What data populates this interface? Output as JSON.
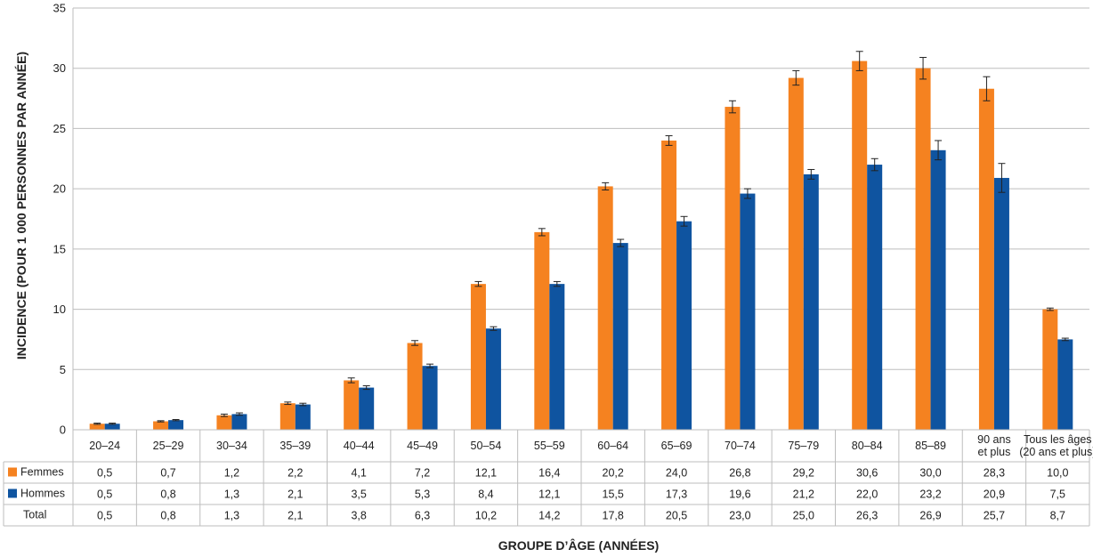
{
  "chart_data": {
    "type": "bar",
    "xlabel": "GROUPE D’ÂGE (ANNÉES)",
    "ylabel": "INCIDENCE (POUR 1 000 PERSONNES PAR ANNÉE)",
    "ylim": [
      0,
      35
    ],
    "yticks": [
      0,
      5,
      10,
      15,
      20,
      25,
      30,
      35
    ],
    "grid": true,
    "categories": [
      "20–24",
      "25–29",
      "30–34",
      "35–39",
      "40–44",
      "45–49",
      "50–54",
      "55–59",
      "60–64",
      "65–69",
      "70–74",
      "75–79",
      "80–84",
      "85–89",
      "90 ans|et plus",
      "Tous les âges|(20 ans et plus)"
    ],
    "series": [
      {
        "name": "Femmes",
        "color": "#F58220",
        "values": [
          0.5,
          0.7,
          1.2,
          2.2,
          4.1,
          7.2,
          12.1,
          16.4,
          20.2,
          24.0,
          26.8,
          29.2,
          30.6,
          30.0,
          28.3,
          10.0
        ],
        "err": [
          0.05,
          0.05,
          0.1,
          0.1,
          0.2,
          0.2,
          0.2,
          0.3,
          0.3,
          0.4,
          0.5,
          0.6,
          0.8,
          0.9,
          1.0,
          0.1
        ],
        "labels": [
          "0,5",
          "0,7",
          "1,2",
          "2,2",
          "4,1",
          "7,2",
          "12,1",
          "16,4",
          "20,2",
          "24,0",
          "26,8",
          "29,2",
          "30,6",
          "30,0",
          "28,3",
          "10,0"
        ]
      },
      {
        "name": "Hommes",
        "color": "#0F54A0",
        "values": [
          0.5,
          0.8,
          1.3,
          2.1,
          3.5,
          5.3,
          8.4,
          12.1,
          15.5,
          17.3,
          19.6,
          21.2,
          22.0,
          23.2,
          20.9,
          7.5
        ],
        "err": [
          0.05,
          0.05,
          0.1,
          0.1,
          0.15,
          0.15,
          0.15,
          0.2,
          0.3,
          0.4,
          0.4,
          0.4,
          0.5,
          0.8,
          1.2,
          0.1
        ],
        "labels": [
          "0,5",
          "0,8",
          "1,3",
          "2,1",
          "3,5",
          "5,3",
          "8,4",
          "12,1",
          "15,5",
          "17,3",
          "19,6",
          "21,2",
          "22,0",
          "23,2",
          "20,9",
          "7,5"
        ]
      }
    ],
    "table_rows": [
      {
        "label": "Femmes",
        "legend_color": "#F58220",
        "values": [
          "0,5",
          "0,7",
          "1,2",
          "2,2",
          "4,1",
          "7,2",
          "12,1",
          "16,4",
          "20,2",
          "24,0",
          "26,8",
          "29,2",
          "30,6",
          "30,0",
          "28,3",
          "10,0"
        ]
      },
      {
        "label": "Hommes",
        "legend_color": "#0F54A0",
        "values": [
          "0,5",
          "0,8",
          "1,3",
          "2,1",
          "3,5",
          "5,3",
          "8,4",
          "12,1",
          "15,5",
          "17,3",
          "19,6",
          "21,2",
          "22,0",
          "23,2",
          "20,9",
          "7,5"
        ]
      },
      {
        "label": "Total",
        "legend_color": "",
        "values": [
          "0,5",
          "0,8",
          "1,3",
          "2,1",
          "3,8",
          "6,3",
          "10,2",
          "14,2",
          "17,8",
          "20,5",
          "23,0",
          "25,0",
          "26,3",
          "26,9",
          "25,7",
          "8,7"
        ]
      }
    ]
  }
}
